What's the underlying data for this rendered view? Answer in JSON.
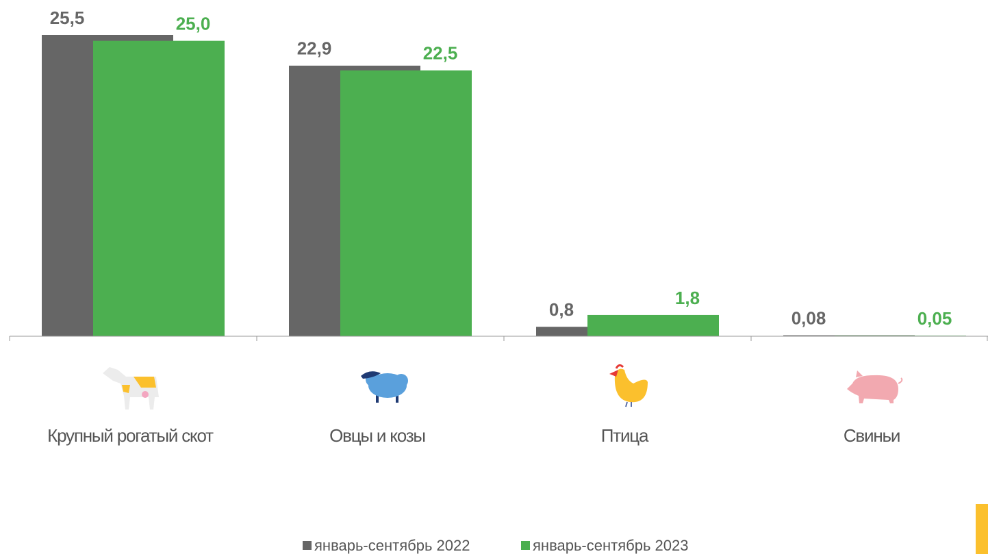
{
  "chart_data": {
    "type": "bar",
    "categories": [
      "Крупный рогатый скот",
      "Овцы и козы",
      "Птица",
      "Свиньи"
    ],
    "series": [
      {
        "name": "январь-сентябрь 2022",
        "color": "#666666",
        "values": [
          25.5,
          22.9,
          0.8,
          0.08
        ],
        "value_labels": [
          "25,5",
          "22,9",
          "0,8",
          "0,08"
        ]
      },
      {
        "name": "январь-сентябрь 2023",
        "color": "#4caf50",
        "values": [
          25.0,
          22.5,
          1.8,
          0.05
        ],
        "value_labels": [
          "25,0",
          "22,5",
          "1,8",
          "0,05"
        ]
      }
    ],
    "legend": "bottom"
  }
}
